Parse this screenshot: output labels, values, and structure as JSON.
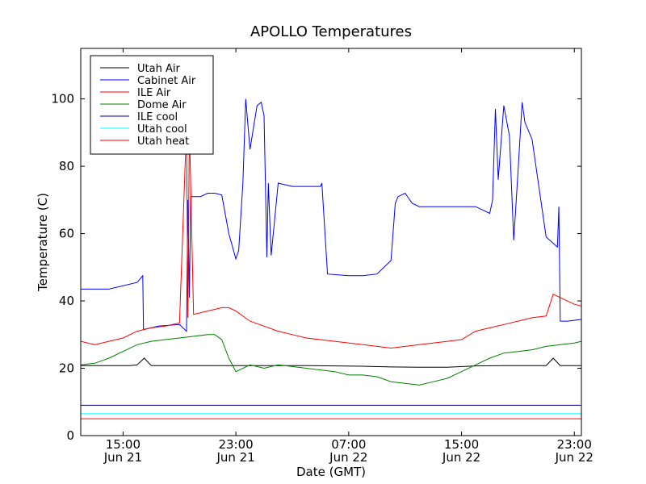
{
  "chart_data": {
    "type": "line",
    "title": "APOLLO Temperatures",
    "xlabel": "Date (GMT)",
    "ylabel": "Temperature (C)",
    "xlim": [
      12.0,
      47.5
    ],
    "ylim": [
      0,
      115
    ],
    "yticks": [
      0,
      20,
      40,
      60,
      80,
      100
    ],
    "xticks": [
      {
        "x": 15,
        "time": "15:00",
        "date": "Jun 21"
      },
      {
        "x": 23,
        "time": "23:00",
        "date": "Jun 21"
      },
      {
        "x": 31,
        "time": "07:00",
        "date": "Jun 22"
      },
      {
        "x": 39,
        "time": "15:00",
        "date": "Jun 22"
      },
      {
        "x": 47,
        "time": "23:00",
        "date": "Jun 22"
      }
    ],
    "legend_position": "top-left",
    "series": [
      {
        "name": "Utah Air",
        "color": "#000000",
        "x": [
          12,
          14,
          15.5,
          16,
          16.5,
          17,
          18,
          20,
          22,
          24,
          26,
          28,
          30,
          32,
          34,
          36,
          38,
          40,
          42,
          44,
          45,
          45.5,
          46,
          47,
          47.5
        ],
        "y": [
          20.8,
          20.8,
          20.8,
          21.0,
          23.0,
          20.8,
          20.8,
          20.8,
          20.8,
          20.8,
          20.8,
          20.8,
          20.7,
          20.6,
          20.4,
          20.3,
          20.3,
          20.7,
          20.8,
          20.8,
          20.8,
          23.0,
          20.8,
          20.8,
          20.8
        ]
      },
      {
        "name": "Cabinet Air",
        "color": "#0000ff",
        "x": [
          12,
          14,
          16,
          16.4,
          16.45,
          17.5,
          19,
          19.5,
          19.6,
          19.7,
          19.8,
          20.5,
          21,
          21.5,
          22,
          22.5,
          23,
          23.2,
          23.5,
          23.7,
          24,
          24.5,
          24.8,
          25,
          25.2,
          25.3,
          25.5,
          26,
          27,
          28,
          29,
          29.1,
          29.5,
          31,
          32,
          33,
          34,
          34.3,
          34.5,
          35,
          35.5,
          36,
          37,
          38,
          39,
          40,
          40.5,
          41,
          41.2,
          41.4,
          41.6,
          42,
          42.4,
          42.7,
          43,
          43.3,
          43.5,
          44,
          45,
          45.8,
          45.9,
          46,
          46.5,
          47.5
        ],
        "y": [
          43.5,
          43.5,
          45.5,
          47.5,
          31.5,
          32.5,
          33.0,
          31.0,
          70.0,
          41.0,
          71.0,
          71.0,
          72.0,
          72.0,
          71.5,
          60.0,
          52.5,
          55.0,
          75.0,
          100.0,
          85.0,
          98.0,
          99.0,
          95.0,
          53.0,
          75.0,
          53.5,
          75.0,
          74.0,
          74.0,
          74.0,
          75.0,
          48.0,
          47.5,
          47.5,
          48.0,
          52.0,
          69.0,
          71.0,
          72.0,
          69.0,
          68.0,
          68.0,
          68.0,
          68.0,
          68.0,
          67.0,
          66.0,
          70.0,
          97.0,
          76.0,
          98.0,
          89.0,
          58.0,
          78.0,
          99.0,
          93.0,
          88.0,
          59.0,
          56.0,
          68.0,
          34.0,
          34.0,
          34.5
        ]
      },
      {
        "name": "ILE Air",
        "color": "#ff0000",
        "x": [
          12,
          13,
          14,
          15,
          16,
          17,
          18,
          19,
          19.5,
          19.6,
          19.7,
          20,
          21,
          22,
          22.5,
          23,
          24,
          25,
          26,
          27,
          28,
          30,
          32,
          34,
          36,
          38,
          39,
          40,
          41,
          42,
          43,
          44,
          45,
          45.5,
          46,
          47,
          47.5
        ],
        "y": [
          28.0,
          27.0,
          28.0,
          29.0,
          31.0,
          32.0,
          32.5,
          33.5,
          92.0,
          35.0,
          92.0,
          36.0,
          37.0,
          38.0,
          38.0,
          37.0,
          34.0,
          32.5,
          31.0,
          30.0,
          29.0,
          28.0,
          27.0,
          26.0,
          27.0,
          28.0,
          28.5,
          31.0,
          32.0,
          33.0,
          34.0,
          35.0,
          35.5,
          42.0,
          41.0,
          39.0,
          38.5
        ]
      },
      {
        "name": "Dome Air",
        "color": "#008000",
        "x": [
          12,
          13,
          14,
          15,
          16,
          17,
          18,
          19,
          20,
          21,
          21.5,
          22,
          22.5,
          23,
          24,
          25,
          26,
          28,
          30,
          31,
          32,
          33,
          34,
          35,
          36,
          37,
          38,
          39,
          40,
          41,
          42,
          43,
          44,
          45,
          46,
          47,
          47.5
        ],
        "y": [
          21.0,
          21.5,
          23.0,
          25.0,
          27.0,
          28.0,
          28.5,
          29.0,
          29.5,
          30.0,
          30.0,
          28.5,
          23.0,
          19.0,
          21.0,
          20.0,
          21.0,
          20.0,
          19.0,
          18.0,
          18.0,
          17.5,
          16.0,
          15.5,
          15.0,
          16.0,
          17.0,
          19.0,
          21.0,
          23.0,
          24.5,
          25.0,
          25.5,
          26.5,
          27.0,
          27.5,
          28.0
        ]
      },
      {
        "name": "ILE cool",
        "color": "#000080",
        "x": [
          12,
          47.5
        ],
        "y": [
          9.0,
          9.0
        ]
      },
      {
        "name": "Utah cool",
        "color": "#00ffff",
        "x": [
          12,
          47.5
        ],
        "y": [
          6.5,
          6.5
        ]
      },
      {
        "name": "Utah heat",
        "color": "#ff0000",
        "x": [
          12,
          47.5
        ],
        "y": [
          5.0,
          5.0
        ]
      }
    ]
  }
}
